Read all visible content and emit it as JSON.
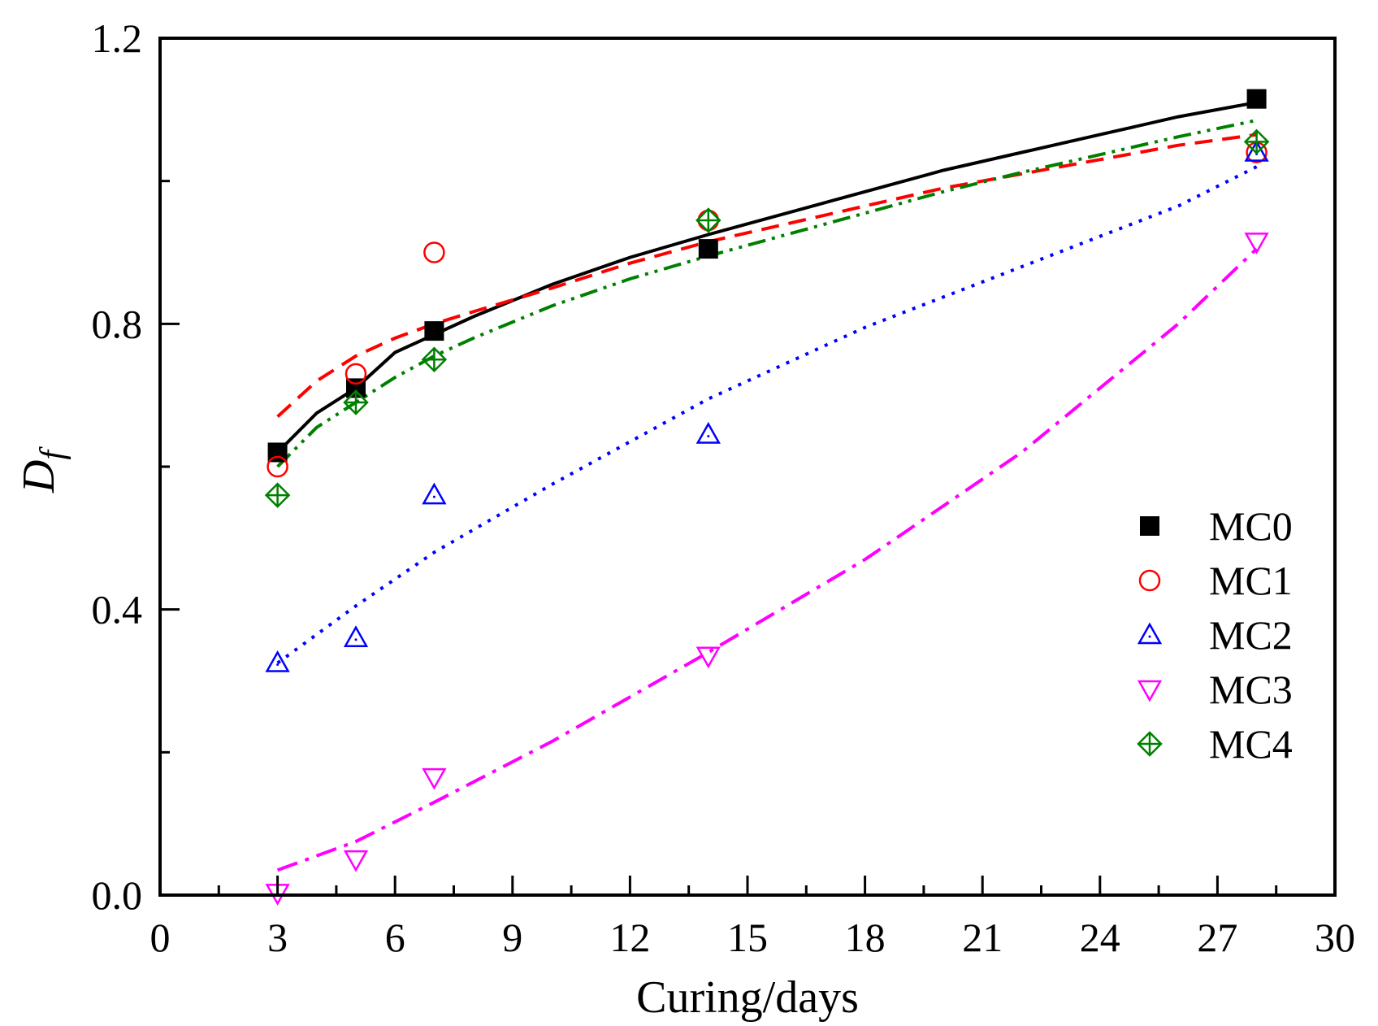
{
  "chart_data": {
    "type": "scatter",
    "xlabel": "Curing/days",
    "ylabel": "D",
    "ylabel_subscript": "f",
    "xlim": [
      0,
      30
    ],
    "ylim": [
      0.0,
      1.2
    ],
    "x_ticks": [
      0,
      3,
      6,
      9,
      12,
      15,
      18,
      21,
      24,
      27,
      30
    ],
    "x_tick_labels": [
      "0",
      "3",
      "6",
      "9",
      "12",
      "15",
      "18",
      "21",
      "24",
      "27",
      "30"
    ],
    "y_ticks": [
      0.0,
      0.4,
      0.8,
      1.2
    ],
    "y_tick_labels": [
      "0.0",
      "0.4",
      "0.8",
      "1.2"
    ],
    "y_minor_ticks": [
      0.2,
      0.6,
      1.0
    ],
    "legend_position": "right-middle",
    "x": [
      3,
      5,
      7,
      14,
      28
    ],
    "series": [
      {
        "name": "MC0",
        "marker": "filled-square",
        "color": "#000000",
        "line_style": "solid",
        "values": [
          0.62,
          0.71,
          0.79,
          0.905,
          1.115
        ],
        "fit_x": [
          3,
          4,
          5,
          6,
          7,
          8,
          10,
          12,
          14,
          16,
          18,
          20,
          22,
          24,
          26,
          28
        ],
        "fit_y": [
          0.62,
          0.675,
          0.71,
          0.76,
          0.785,
          0.81,
          0.855,
          0.893,
          0.925,
          0.955,
          0.985,
          1.015,
          1.04,
          1.065,
          1.09,
          1.11
        ]
      },
      {
        "name": "MC1",
        "marker": "open-circle",
        "color": "#ff0000",
        "line_style": "dash",
        "values": [
          0.6,
          0.73,
          0.9,
          0.945,
          1.04
        ],
        "fit_x": [
          3,
          4,
          5,
          6,
          7,
          8,
          10,
          12,
          14,
          16,
          18,
          20,
          22,
          24,
          26,
          28
        ],
        "fit_y": [
          0.67,
          0.72,
          0.755,
          0.78,
          0.8,
          0.817,
          0.85,
          0.885,
          0.915,
          0.94,
          0.965,
          0.99,
          1.01,
          1.03,
          1.05,
          1.065
        ]
      },
      {
        "name": "MC2",
        "marker": "open-triangle-up",
        "color": "#0000ff",
        "line_style": "dot",
        "values": [
          0.325,
          0.36,
          0.56,
          0.645,
          1.04
        ],
        "fit_x": [
          3,
          5,
          7,
          10,
          14,
          18,
          22,
          26,
          28
        ],
        "fit_y": [
          0.325,
          0.405,
          0.48,
          0.575,
          0.695,
          0.795,
          0.88,
          0.965,
          1.02
        ]
      },
      {
        "name": "MC3",
        "marker": "open-triangle-down",
        "color": "#ff00ff",
        "line_style": "dashdot",
        "values": [
          0.003,
          0.05,
          0.165,
          0.335,
          0.915
        ],
        "fit_x": [
          3,
          5,
          7,
          10,
          14,
          18,
          22,
          26,
          28
        ],
        "fit_y": [
          0.035,
          0.075,
          0.13,
          0.215,
          0.34,
          0.47,
          0.62,
          0.8,
          0.905
        ]
      },
      {
        "name": "MC4",
        "marker": "open-diamond-cross",
        "color": "#008000",
        "line_style": "dashdotdot",
        "values": [
          0.56,
          0.69,
          0.75,
          0.945,
          1.055
        ],
        "fit_x": [
          3,
          4,
          5,
          6,
          7,
          8,
          10,
          12,
          14,
          16,
          18,
          20,
          22,
          24,
          26,
          28
        ],
        "fit_y": [
          0.6,
          0.655,
          0.69,
          0.725,
          0.755,
          0.78,
          0.825,
          0.863,
          0.895,
          0.925,
          0.955,
          0.985,
          1.012,
          1.037,
          1.062,
          1.085
        ]
      }
    ]
  }
}
